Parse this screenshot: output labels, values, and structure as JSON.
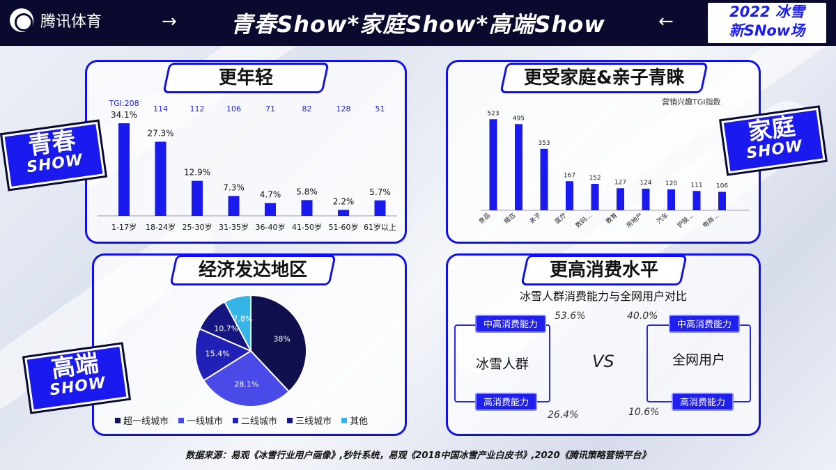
{
  "brand": {
    "name": "腾讯体育",
    "logo_icon": "tencent-sports-logo-icon"
  },
  "headline": "青春Show*家庭Show*高端Show",
  "event_badge": {
    "line1": "2022 冰雪",
    "line2": "新SNow场"
  },
  "badges": {
    "youth": {
      "line1": "青春",
      "line2": "SHOW"
    },
    "family": {
      "line1": "家庭",
      "line2": "SHOW"
    },
    "premium": {
      "line1": "高端",
      "line2": "SHOW"
    }
  },
  "panels": {
    "younger": {
      "title": "更年轻"
    },
    "family": {
      "title": "更受家庭&亲子青睐",
      "note": "营销兴趣TGI指数"
    },
    "region": {
      "title": "经济发达地区"
    },
    "spending": {
      "title": "更高消费水平",
      "subtitle": "冰雪人群消费能力与全网用户对比"
    }
  },
  "chart_data": [
    {
      "type": "bar",
      "categories": [
        "1-17岁",
        "18-24岁",
        "25-30岁",
        "31-35岁",
        "36-40岁",
        "41-50岁",
        "51-60岁",
        "61岁以上"
      ],
      "values": [
        34.1,
        27.3,
        12.9,
        7.3,
        4.7,
        5.8,
        2.2,
        5.7
      ],
      "value_labels": [
        "34.1%",
        "27.3%",
        "12.9%",
        "7.3%",
        "4.7%",
        "5.8%",
        "2.2%",
        "5.7%"
      ],
      "tgi": [
        "TGI:208",
        "114",
        "112",
        "106",
        "71",
        "82",
        "128",
        "51"
      ],
      "ylim": [
        0,
        40
      ],
      "color": "#1a1aee"
    },
    {
      "type": "bar",
      "categories": [
        "食品",
        "婚恋",
        "亲子",
        "医疗",
        "数码…",
        "教育",
        "房地产",
        "汽车",
        "护肤…",
        "电商…"
      ],
      "values": [
        523,
        495,
        353,
        167,
        152,
        127,
        124,
        120,
        111,
        106
      ],
      "value_labels": [
        "523",
        "495",
        "353",
        "167",
        "152",
        "127",
        "124",
        "120",
        "111",
        "106"
      ],
      "ylim": [
        0,
        600
      ],
      "color": "#1a1aee"
    },
    {
      "type": "pie",
      "categories": [
        "超一线城市",
        "一线城市",
        "二线城市",
        "三线城市",
        "其他"
      ],
      "values": [
        38,
        28.1,
        15.4,
        10.7,
        7.8
      ],
      "value_labels": [
        "38%",
        "28.1%",
        "15.4%",
        "10.7%",
        "7.8%"
      ],
      "colors": [
        "#10104f",
        "#4a4ae8",
        "#2121b8",
        "#161680",
        "#35b4e6"
      ]
    }
  ],
  "comparison": {
    "left": {
      "name": "冰雪人群",
      "top_label": "中高消费能力",
      "top_pct": "53.6%",
      "bottom_label": "高消费能力",
      "bottom_pct": "26.4%"
    },
    "vs": "VS",
    "right": {
      "name": "全网用户",
      "top_label": "中高消费能力",
      "top_pct": "40.0%",
      "bottom_label": "高消费能力",
      "bottom_pct": "10.6%"
    }
  },
  "footer": "数据来源：易观《冰雪行业用户画像》,秒针系统，易观《2018中国冰雪产业白皮书》,2020《腾讯策略营销平台》",
  "colors": {
    "accent": "#1a1aee",
    "dark": "#0a0a2e"
  }
}
